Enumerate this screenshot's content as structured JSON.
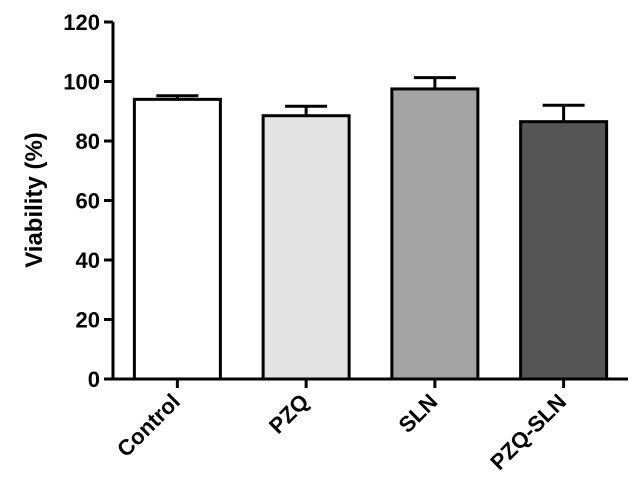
{
  "chart_data": {
    "type": "bar",
    "categories": [
      "Control",
      "PZQ",
      "SLN",
      "PZQ-SLN"
    ],
    "values": [
      94,
      88.5,
      97.5,
      86.5
    ],
    "errors": [
      1.2,
      3.2,
      3.8,
      5.5
    ],
    "bar_colors": [
      "#ffffff",
      "#e4e4e4",
      "#a3a3a3",
      "#555555"
    ],
    "ylabel": "Viability (%)",
    "xlabel": "",
    "ylim": [
      0,
      120
    ],
    "yticks": [
      0,
      20,
      40,
      60,
      80,
      100,
      120
    ],
    "grid": false
  }
}
